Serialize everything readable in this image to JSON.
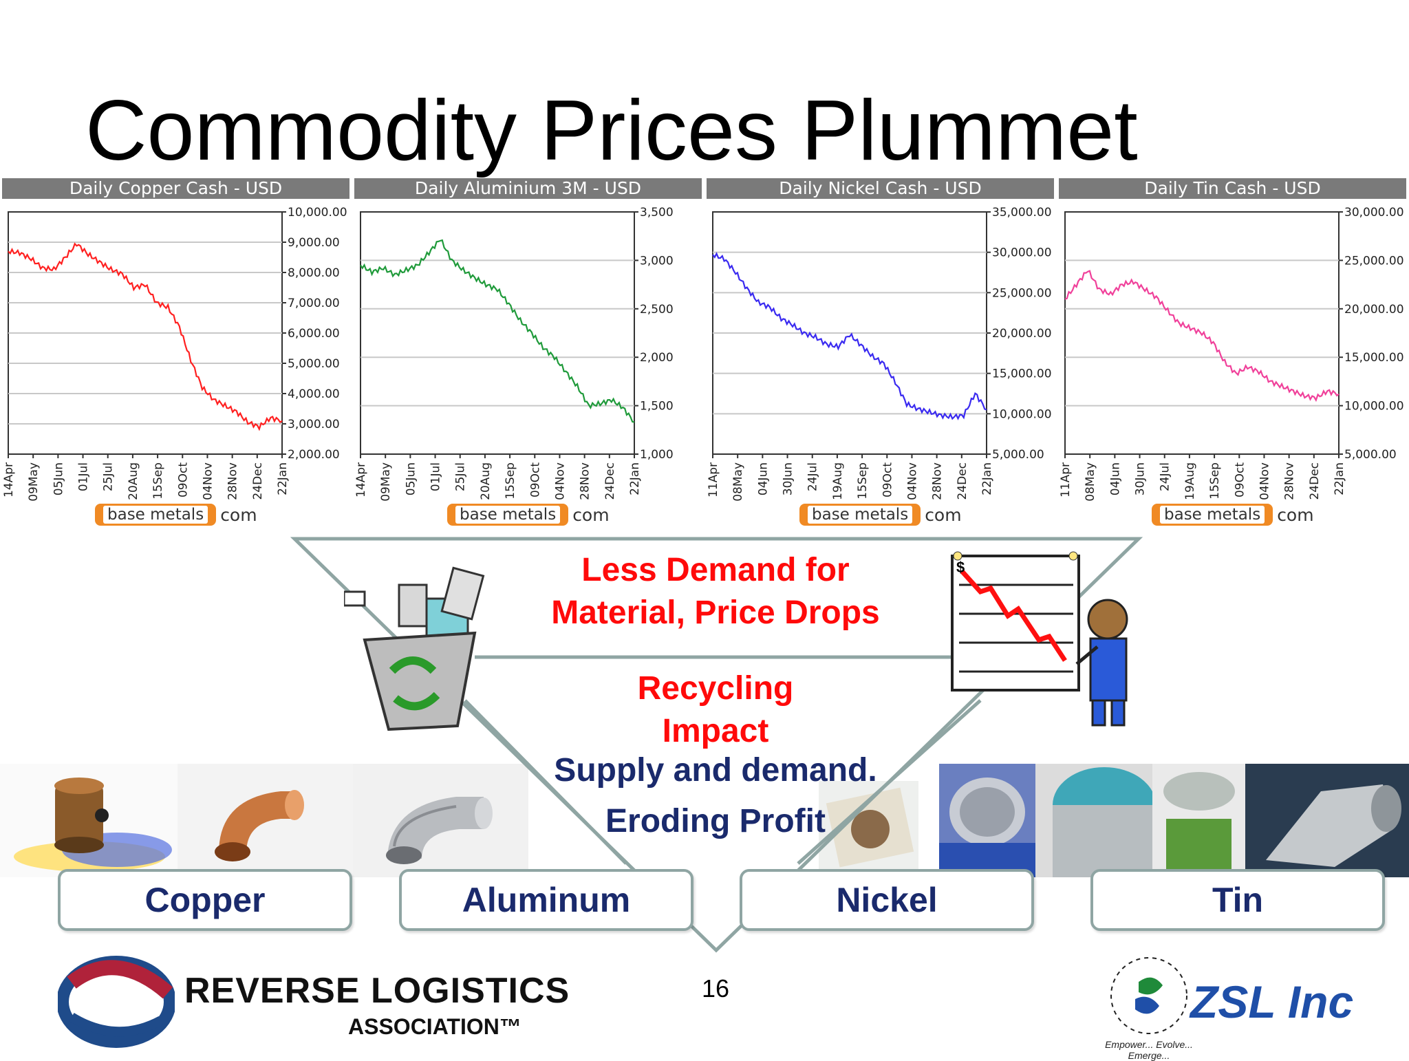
{
  "slide": {
    "title": "Commodity Prices Plummet",
    "page_number": "16"
  },
  "chart_data": [
    {
      "type": "line",
      "title": "Daily Copper Cash - USD",
      "color": "#ff2020",
      "ylim": [
        2000,
        10000
      ],
      "y_ticks": [
        "10,000.00",
        "9,000.00",
        "8,000.00",
        "7,000.00",
        "6,000.00",
        "5,000.00",
        "4,000.00",
        "3,000.00",
        "2,000.00"
      ],
      "x_ticks": [
        "14Apr",
        "09May",
        "05Jun",
        "01Jul",
        "25Jul",
        "20Aug",
        "15Sep",
        "09Oct",
        "04Nov",
        "28Nov",
        "24Dec",
        "22Jan"
      ],
      "values": [
        8700,
        8650,
        8450,
        8150,
        8100,
        8500,
        8950,
        8600,
        8350,
        8100,
        7950,
        7500,
        7600,
        7000,
        6850,
        6200,
        5100,
        4200,
        3800,
        3600,
        3400,
        3050,
        2900,
        3200,
        3100
      ]
    },
    {
      "type": "line",
      "title": "Daily Aluminium 3M  - USD",
      "color": "#1f9a3a",
      "ylim": [
        1000,
        3500
      ],
      "y_ticks": [
        "3,500",
        "3,000",
        "2,500",
        "2,000",
        "1,500",
        "1,000"
      ],
      "x_ticks": [
        "14Apr",
        "09May",
        "05Jun",
        "01Jul",
        "25Jul",
        "20Aug",
        "15Sep",
        "09Oct",
        "04Nov",
        "28Nov",
        "24Dec",
        "22Jan"
      ],
      "values": [
        2950,
        2880,
        2920,
        2850,
        2900,
        2950,
        3080,
        3220,
        3000,
        2900,
        2820,
        2750,
        2700,
        2550,
        2380,
        2250,
        2100,
        2000,
        1850,
        1700,
        1500,
        1520,
        1560,
        1480,
        1330
      ]
    },
    {
      "type": "line",
      "title": "Daily Nickel Cash - USD",
      "color": "#3a2af0",
      "ylim": [
        5000,
        35000
      ],
      "y_ticks": [
        "35,000.00",
        "30,000.00",
        "25,000.00",
        "20,000.00",
        "15,000.00",
        "10,000.00",
        "5,000.00"
      ],
      "x_ticks": [
        "11Apr",
        "08May",
        "04Jun",
        "30Jun",
        "24Jul",
        "19Aug",
        "15Sep",
        "09Oct",
        "04Nov",
        "28Nov",
        "24Dec",
        "22Jan"
      ],
      "values": [
        29700,
        29200,
        27500,
        25500,
        23800,
        23200,
        21800,
        21000,
        20000,
        19500,
        18600,
        18300,
        19800,
        18500,
        17100,
        16200,
        13900,
        11200,
        10600,
        10200,
        9800,
        9600,
        9800,
        12500,
        10500
      ]
    },
    {
      "type": "line",
      "title": "Daily Tin Cash - USD",
      "color": "#f0409a",
      "ylim": [
        5000,
        30000
      ],
      "y_ticks": [
        "30,000.00",
        "25,000.00",
        "20,000.00",
        "15,000.00",
        "10,000.00",
        "5,000.00"
      ],
      "x_ticks": [
        "11Apr",
        "08May",
        "04Jun",
        "30Jun",
        "24Jul",
        "19Aug",
        "15Sep",
        "09Oct",
        "04Nov",
        "28Nov",
        "24Dec",
        "22Jan"
      ],
      "values": [
        21000,
        22500,
        24000,
        22000,
        21500,
        22500,
        22800,
        22000,
        21200,
        19800,
        18500,
        18000,
        17500,
        16500,
        14500,
        13300,
        14000,
        13500,
        12500,
        12000,
        11500,
        11000,
        10800,
        11500,
        11200
      ]
    }
  ],
  "branding": {
    "pill_text": "base metals",
    "domain_suffix": "com"
  },
  "center": {
    "line1": "Less Demand for Material, Price Drops",
    "line2": "Recycling Impact",
    "line3": "Supply and demand.",
    "line4": "Eroding Profit"
  },
  "metals": [
    "Copper",
    "Aluminum",
    "Nickel",
    "Tin"
  ],
  "logos": {
    "rla_main": "REVERSE LOGISTICS",
    "rla_sub": "ASSOCIATION™",
    "zsl_name": "ZSL Inc",
    "zsl_ring": "Empower... Evolve... Emerge..."
  },
  "colors": {
    "header_bg": "#7a7a7a",
    "accent_red": "#ff0a0a",
    "text_navy": "#1a2a6c",
    "frame_teal": "#8fa5a3",
    "brand_orange": "#f08a24"
  }
}
